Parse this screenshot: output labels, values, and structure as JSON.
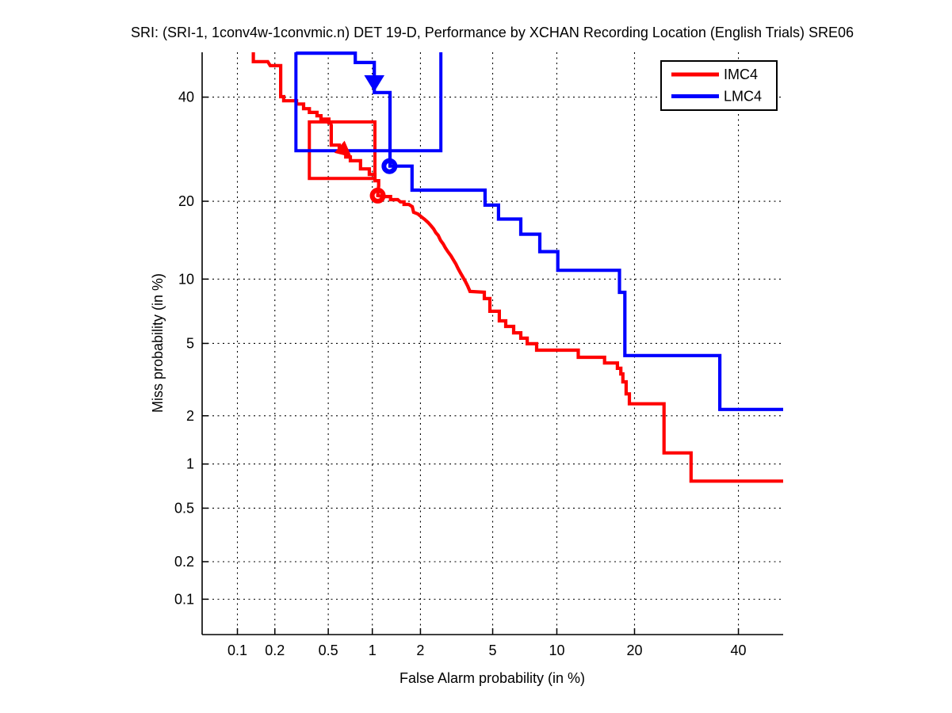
{
  "title": "SRI: (SRI-1, 1conv4w-1convmic.n) DET 19-D,  Performance by XCHAN Recording Location (English Trials) SRE06",
  "axes": {
    "x": {
      "label": "False Alarm probability (in %)",
      "ticks": [
        {
          "v": 0.1,
          "label": "0.1"
        },
        {
          "v": 0.2,
          "label": "0.2"
        },
        {
          "v": 0.5,
          "label": "0.5"
        },
        {
          "v": 1,
          "label": "1"
        },
        {
          "v": 2,
          "label": "2"
        },
        {
          "v": 5,
          "label": "5"
        },
        {
          "v": 10,
          "label": "10"
        },
        {
          "v": 20,
          "label": "20"
        },
        {
          "v": 40,
          "label": "40"
        }
      ],
      "range_pct": [
        0.05,
        50
      ]
    },
    "y": {
      "label": "Miss probability (in %)",
      "ticks": [
        {
          "v": 40,
          "label": "40"
        },
        {
          "v": 20,
          "label": "20"
        },
        {
          "v": 10,
          "label": "10"
        },
        {
          "v": 5,
          "label": "5"
        },
        {
          "v": 2,
          "label": "2"
        },
        {
          "v": 1,
          "label": "1"
        },
        {
          "v": 0.5,
          "label": "0.5"
        },
        {
          "v": 0.2,
          "label": "0.2"
        },
        {
          "v": 0.1,
          "label": "0.1"
        }
      ],
      "range_pct": [
        0.05,
        50
      ]
    }
  },
  "legend": {
    "position": "top-right",
    "items": [
      {
        "label": "IMC4",
        "color": "#ff0000"
      },
      {
        "label": "LMC4",
        "color": "#0000ff"
      }
    ]
  },
  "colors": {
    "red": "#ff0000",
    "blue": "#0000ff",
    "grid": "#000000",
    "axis": "#000000",
    "background": "#ffffff"
  },
  "chart_data": {
    "type": "line",
    "subtype": "DET-curve",
    "scale": "normal-deviate (probit) on both axes",
    "title": "SRI: (SRI-1, 1conv4w-1convmic.n) DET 19-D,  Performance by XCHAN Recording Location (English Trials) SRE06",
    "xlabel": "False Alarm probability (in %)",
    "ylabel": "Miss probability (in %)",
    "xlim_pct": [
      0.05,
      50
    ],
    "ylim_pct": [
      0.05,
      50
    ],
    "grid": "dotted",
    "legend_position": "top-right",
    "series": [
      {
        "name": "IMC4",
        "color": "#ff0000",
        "points": [
          [
            0.135,
            50
          ],
          [
            0.135,
            47.9
          ],
          [
            0.176,
            47.9
          ],
          [
            0.184,
            47.0
          ],
          [
            0.222,
            47.0
          ],
          [
            0.222,
            40.1
          ],
          [
            0.234,
            40.1
          ],
          [
            0.234,
            39.2
          ],
          [
            0.293,
            39.2
          ],
          [
            0.293,
            38.5
          ],
          [
            0.331,
            38.5
          ],
          [
            0.331,
            37.5
          ],
          [
            0.365,
            37.5
          ],
          [
            0.365,
            36.7
          ],
          [
            0.415,
            36.7
          ],
          [
            0.415,
            36.0
          ],
          [
            0.443,
            36.0
          ],
          [
            0.443,
            35.3
          ],
          [
            0.505,
            35.3
          ],
          [
            0.505,
            34.5
          ],
          [
            0.519,
            34.5
          ],
          [
            0.525,
            34.0
          ],
          [
            0.525,
            30.0
          ],
          [
            0.598,
            30.0
          ],
          [
            0.598,
            29.2
          ],
          [
            0.637,
            29.2
          ],
          [
            0.663,
            28.9
          ],
          [
            0.663,
            27.7
          ],
          [
            0.713,
            27.7
          ],
          [
            0.713,
            27.0
          ],
          [
            0.835,
            27.0
          ],
          [
            0.835,
            25.5
          ],
          [
            0.955,
            25.5
          ],
          [
            0.955,
            24.5
          ],
          [
            1.04,
            24.5
          ],
          [
            1.04,
            23.4
          ],
          [
            1.1,
            23.4
          ],
          [
            1.1,
            22.5
          ],
          [
            1.09,
            21.6
          ],
          [
            1.085,
            20.9
          ],
          [
            1.19,
            20.75
          ],
          [
            1.31,
            20.75
          ],
          [
            1.31,
            20.25
          ],
          [
            1.455,
            20.25
          ],
          [
            1.51,
            19.9
          ],
          [
            1.59,
            19.9
          ],
          [
            1.59,
            19.5
          ],
          [
            1.7,
            19.5
          ],
          [
            1.785,
            19.15
          ],
          [
            1.82,
            18.3
          ],
          [
            1.93,
            18.05
          ],
          [
            2.03,
            17.6
          ],
          [
            2.12,
            17.25
          ],
          [
            2.22,
            16.8
          ],
          [
            2.31,
            16.35
          ],
          [
            2.39,
            15.9
          ],
          [
            2.46,
            15.4
          ],
          [
            2.54,
            15.05
          ],
          [
            2.62,
            14.4
          ],
          [
            2.71,
            13.95
          ],
          [
            2.79,
            13.45
          ],
          [
            2.88,
            13.0
          ],
          [
            3.0,
            12.5
          ],
          [
            3.09,
            12.05
          ],
          [
            3.19,
            11.6
          ],
          [
            3.28,
            11.1
          ],
          [
            3.39,
            10.6
          ],
          [
            3.49,
            10.2
          ],
          [
            3.59,
            9.8
          ],
          [
            3.7,
            9.35
          ],
          [
            3.78,
            8.97
          ],
          [
            3.81,
            8.83
          ],
          [
            4.53,
            8.76
          ],
          [
            4.53,
            8.2
          ],
          [
            4.84,
            8.2
          ],
          [
            4.84,
            7.17
          ],
          [
            5.4,
            7.17
          ],
          [
            5.4,
            6.46
          ],
          [
            5.81,
            6.46
          ],
          [
            5.81,
            6.07
          ],
          [
            6.35,
            6.07
          ],
          [
            6.35,
            5.65
          ],
          [
            6.87,
            5.65
          ],
          [
            6.87,
            5.31
          ],
          [
            7.36,
            5.31
          ],
          [
            7.36,
            4.98
          ],
          [
            8.14,
            4.98
          ],
          [
            8.14,
            4.62
          ],
          [
            12.3,
            4.62
          ],
          [
            12.3,
            4.24
          ],
          [
            15.6,
            4.24
          ],
          [
            15.6,
            3.96
          ],
          [
            17.4,
            3.96
          ],
          [
            17.4,
            3.71
          ],
          [
            17.9,
            3.71
          ],
          [
            17.9,
            3.46
          ],
          [
            18.2,
            3.46
          ],
          [
            18.2,
            3.13
          ],
          [
            18.7,
            3.13
          ],
          [
            18.7,
            2.68
          ],
          [
            19.2,
            2.68
          ],
          [
            19.2,
            2.35
          ],
          [
            25.0,
            2.35
          ],
          [
            25.0,
            1.18
          ],
          [
            30.1,
            1.18
          ],
          [
            30.1,
            0.77
          ],
          [
            50,
            0.77
          ]
        ],
        "min_dcf_circle": {
          "fa": 1.085,
          "miss": 20.9
        },
        "dcf_box": {
          "fa_min": 0.365,
          "fa_max": 1.04,
          "miss_min": 23.8,
          "miss_max": 34.7,
          "open_top": false
        },
        "arrow": {
          "fa": 0.713,
          "miss": 27.9,
          "direction": "down-right"
        }
      },
      {
        "name": "LMC4",
        "color": "#0000ff",
        "points": [
          [
            0.29,
            49.8
          ],
          [
            0.77,
            49.8
          ],
          [
            0.77,
            47.7
          ],
          [
            1.03,
            47.7
          ],
          [
            1.03,
            41.0
          ],
          [
            1.3,
            41.0
          ],
          [
            1.3,
            26.0
          ],
          [
            1.78,
            26.0
          ],
          [
            1.78,
            21.8
          ],
          [
            4.57,
            21.8
          ],
          [
            4.57,
            19.4
          ],
          [
            5.35,
            19.4
          ],
          [
            5.35,
            17.3
          ],
          [
            6.87,
            17.3
          ],
          [
            6.87,
            15.2
          ],
          [
            8.41,
            15.2
          ],
          [
            8.41,
            13.0
          ],
          [
            10.1,
            13.0
          ],
          [
            10.1,
            10.9
          ],
          [
            17.7,
            10.9
          ],
          [
            17.7,
            8.75
          ],
          [
            18.5,
            8.75
          ],
          [
            18.5,
            4.33
          ],
          [
            36.0,
            4.33
          ],
          [
            36.0,
            2.18
          ],
          [
            50,
            2.18
          ]
        ],
        "min_dcf_circle": {
          "fa": 1.29,
          "miss": 26.0
        },
        "dcf_box": {
          "fa_min": 0.29,
          "fa_max": 2.63,
          "miss_min": 28.9,
          "miss_max": 50,
          "open_top": true
        },
        "arrow": {
          "fa": 1.03,
          "miss": 41.5,
          "direction": "down"
        }
      }
    ]
  }
}
